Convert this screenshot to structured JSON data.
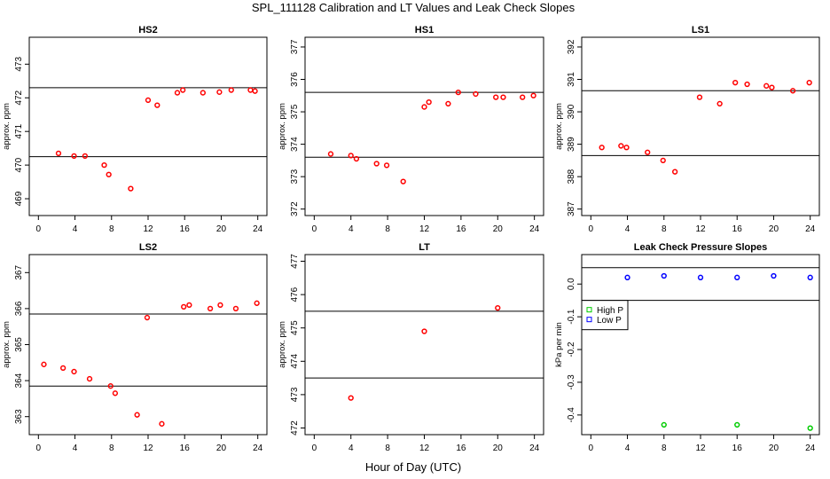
{
  "figure": {
    "title": "SPL_111128  Calibration and LT Values and Leak Check Slopes",
    "xlabel": "Hour of Day (UTC)"
  },
  "chart_data": [
    {
      "type": "scatter",
      "title": "HS2",
      "xlabel": "",
      "ylabel": "approx. ppm",
      "xlim": [
        -1,
        25
      ],
      "xticks": [
        0,
        4,
        8,
        12,
        16,
        20,
        24
      ],
      "ylim": [
        468.5,
        473.8
      ],
      "yticks": [
        469,
        470,
        471,
        472,
        473
      ],
      "hlines": [
        470.25,
        472.3
      ],
      "series": [
        {
          "name": "HS2",
          "color": "#ff0000",
          "marker": "circle",
          "x": [
            2.2,
            3.9,
            5.1,
            7.2,
            7.7,
            10.1,
            12.0,
            13.0,
            15.2,
            15.8,
            18.0,
            19.8,
            21.1,
            23.2,
            23.7
          ],
          "y": [
            470.35,
            470.27,
            470.27,
            470.0,
            469.72,
            469.3,
            471.93,
            471.78,
            472.15,
            472.23,
            472.15,
            472.17,
            472.23,
            472.23,
            472.2
          ]
        }
      ]
    },
    {
      "type": "scatter",
      "title": "HS1",
      "xlabel": "",
      "ylabel": "approx. ppm",
      "xlim": [
        -1,
        25
      ],
      "xticks": [
        0,
        4,
        8,
        12,
        16,
        20,
        24
      ],
      "ylim": [
        371.8,
        377.3
      ],
      "yticks": [
        372,
        373,
        374,
        375,
        376,
        377
      ],
      "hlines": [
        373.6,
        375.6
      ],
      "series": [
        {
          "name": "HS1",
          "color": "#ff0000",
          "marker": "circle",
          "x": [
            1.8,
            4.0,
            4.6,
            6.8,
            7.9,
            9.7,
            12.0,
            12.5,
            14.6,
            15.7,
            17.6,
            19.8,
            20.6,
            22.7,
            23.9
          ],
          "y": [
            373.7,
            373.65,
            373.55,
            373.4,
            373.35,
            372.85,
            375.15,
            375.3,
            375.25,
            375.6,
            375.55,
            375.45,
            375.45,
            375.45,
            375.5
          ]
        }
      ]
    },
    {
      "type": "scatter",
      "title": "LS1",
      "xlabel": "",
      "ylabel": "approx. ppm",
      "xlim": [
        -1,
        25
      ],
      "xticks": [
        0,
        4,
        8,
        12,
        16,
        20,
        24
      ],
      "ylim": [
        386.8,
        392.3
      ],
      "yticks": [
        387,
        388,
        389,
        390,
        391,
        392
      ],
      "hlines": [
        388.65,
        390.65
      ],
      "series": [
        {
          "name": "LS1",
          "color": "#ff0000",
          "marker": "circle",
          "x": [
            1.2,
            3.3,
            3.9,
            6.2,
            7.9,
            9.2,
            11.9,
            14.1,
            15.8,
            17.1,
            19.2,
            19.8,
            22.1,
            23.9
          ],
          "y": [
            388.9,
            388.95,
            388.9,
            388.75,
            388.5,
            388.15,
            390.45,
            390.25,
            390.9,
            390.85,
            390.8,
            390.75,
            390.65,
            390.9
          ]
        }
      ]
    },
    {
      "type": "scatter",
      "title": "LS2",
      "xlabel": "",
      "ylabel": "approx. ppm",
      "xlim": [
        -1,
        25
      ],
      "xticks": [
        0,
        4,
        8,
        12,
        16,
        20,
        24
      ],
      "ylim": [
        362.5,
        367.5
      ],
      "yticks": [
        363,
        364,
        365,
        366,
        367
      ],
      "hlines": [
        363.85,
        365.85
      ],
      "series": [
        {
          "name": "LS2",
          "color": "#ff0000",
          "marker": "circle",
          "x": [
            0.6,
            2.7,
            3.9,
            5.6,
            7.9,
            8.4,
            10.8,
            11.9,
            13.5,
            15.9,
            16.5,
            18.8,
            19.9,
            21.6,
            23.9
          ],
          "y": [
            364.45,
            364.35,
            364.25,
            364.05,
            363.85,
            363.65,
            363.05,
            365.75,
            362.8,
            366.05,
            366.1,
            366.0,
            366.1,
            366.0,
            366.15
          ]
        }
      ]
    },
    {
      "type": "scatter",
      "title": "LT",
      "xlabel": "",
      "ylabel": "approx. ppm",
      "xlim": [
        -1,
        25
      ],
      "xticks": [
        0,
        4,
        8,
        12,
        16,
        20,
        24
      ],
      "ylim": [
        471.8,
        477.2
      ],
      "yticks": [
        472,
        473,
        474,
        475,
        476,
        477
      ],
      "hlines": [
        473.5,
        475.5
      ],
      "series": [
        {
          "name": "LT",
          "color": "#ff0000",
          "marker": "circle",
          "x": [
            4.0,
            12.0,
            20.0
          ],
          "y": [
            472.9,
            474.9,
            475.6
          ]
        }
      ]
    },
    {
      "type": "scatter",
      "title": "Leak Check Pressure Slopes",
      "xlabel": "",
      "ylabel": "kPa per min",
      "xlim": [
        -1,
        25
      ],
      "xticks": [
        0,
        4,
        8,
        12,
        16,
        20,
        24
      ],
      "ylim": [
        -0.46,
        0.09
      ],
      "yticks": [
        0.0,
        -0.1,
        -0.2,
        -0.3,
        -0.4
      ],
      "ytick_labels": [
        "0.0",
        "-0.1",
        "-0.2",
        "-0.3",
        "-0.4"
      ],
      "hlines": [
        0.05,
        -0.05
      ],
      "legend": {
        "position": "left",
        "entries": [
          "High P",
          "Low P"
        ]
      },
      "series": [
        {
          "name": "High P",
          "color": "#00cc00",
          "marker": "circle",
          "x": [
            8.0,
            16.0,
            24.0
          ],
          "y": [
            -0.43,
            -0.43,
            -0.44
          ]
        },
        {
          "name": "Low P",
          "color": "#0000ff",
          "marker": "circle",
          "x": [
            4.0,
            8.0,
            12.0,
            16.0,
            20.0,
            24.0
          ],
          "y": [
            0.02,
            0.025,
            0.02,
            0.02,
            0.025,
            0.02
          ]
        }
      ]
    }
  ]
}
